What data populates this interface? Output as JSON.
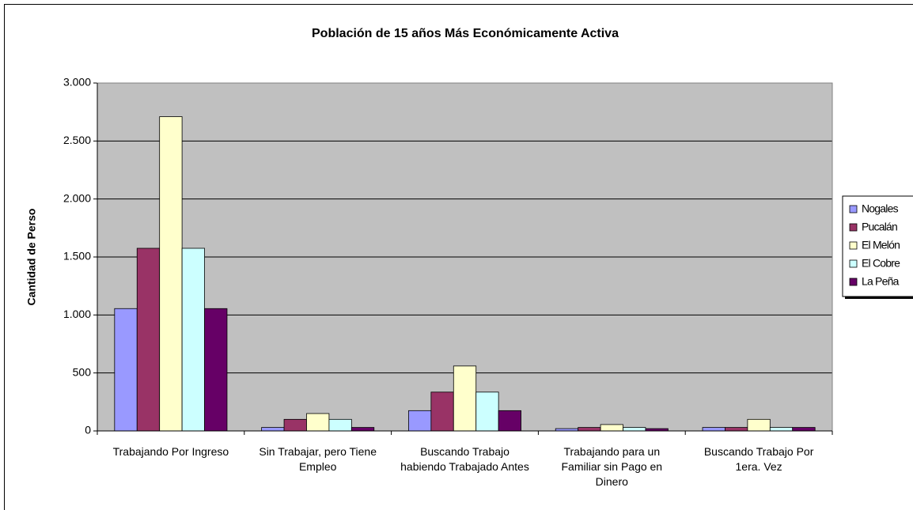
{
  "chart_data": {
    "type": "bar",
    "title": "Población de 15 años  Más Económicamente Activa",
    "y_label": "Cantidad de Perso",
    "categories": [
      "Trabajando Por Ingreso",
      "Sin Trabajar, pero Tiene Empleo",
      "Buscando Trabajo habiendo Trabajado Antes",
      "Trabajando para un Familiar sin Pago en Dinero",
      "Buscando Trabajo Por 1era. Vez"
    ],
    "series": [
      {
        "name": "Nogales",
        "color": "#9999ff",
        "values": [
          1055,
          30,
          175,
          20,
          30
        ]
      },
      {
        "name": "Pucalán",
        "color": "#993366",
        "values": [
          1575,
          100,
          335,
          30,
          30
        ]
      },
      {
        "name": "El Melón",
        "color": "#ffffcc",
        "values": [
          2710,
          150,
          560,
          55,
          100
        ]
      },
      {
        "name": "El Cobre",
        "color": "#ccffff",
        "values": [
          1575,
          100,
          335,
          30,
          30
        ]
      },
      {
        "name": "La Peña",
        "color": "#660066",
        "values": [
          1055,
          30,
          175,
          20,
          30
        ]
      }
    ],
    "ylim": [
      0,
      3000
    ],
    "yticks": [
      0,
      500,
      {
        "value": 1000,
        "label": "1.000"
      },
      {
        "value": 1500,
        "label": "1.500"
      },
      {
        "value": 2000,
        "label": "2.000"
      },
      {
        "value": 2500,
        "label": "2.500"
      },
      {
        "value": 3000,
        "label": "3.000"
      }
    ],
    "grid": true,
    "legend": "right"
  }
}
